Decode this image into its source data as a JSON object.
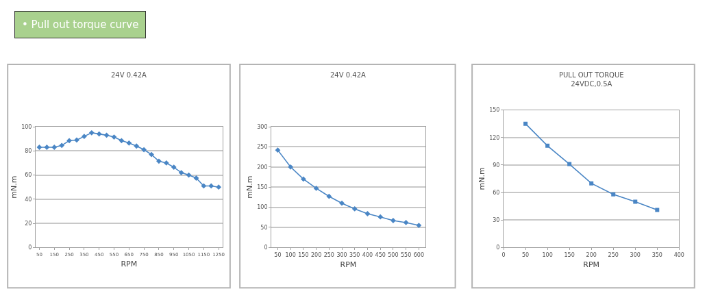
{
  "chart_data": [
    {
      "type": "line",
      "title": "24V 0.42A",
      "xlabel": "RPM",
      "ylabel": "mN.m",
      "annotations": [
        "• Pull out torque curve"
      ],
      "x": [
        50,
        100,
        150,
        200,
        250,
        300,
        350,
        400,
        450,
        500,
        550,
        600,
        650,
        700,
        750,
        800,
        850,
        900,
        950,
        1000,
        1050,
        1100,
        1150,
        1200,
        1250
      ],
      "series": [
        {
          "color": "#4a86c5",
          "values": [
            83,
            83,
            83,
            84.5,
            88.5,
            89,
            92,
            95,
            94,
            93,
            91.5,
            88.5,
            86.5,
            84,
            81,
            77,
            71.5,
            70,
            66.5,
            62,
            60,
            57.5,
            51,
            51,
            50
          ]
        }
      ],
      "xlim": [
        25,
        1275
      ],
      "xticks": [
        50,
        150,
        250,
        350,
        450,
        550,
        650,
        750,
        850,
        950,
        1050,
        1150,
        1250
      ],
      "ylim": [
        0,
        100
      ],
      "yticks": [
        0,
        20,
        40,
        60,
        80,
        100
      ],
      "grid": "y",
      "marker": "diamond",
      "line_style": "solid"
    },
    {
      "type": "line",
      "title": "24V 0.42A",
      "xlabel": "RPM",
      "ylabel": "mN.m",
      "x": [
        50,
        100,
        150,
        200,
        250,
        300,
        350,
        400,
        450,
        500,
        550,
        600
      ],
      "series": [
        {
          "color": "#4a86c5",
          "values": [
            242,
            200,
            170,
            147,
            127,
            110,
            96,
            84,
            76,
            67,
            62,
            55
          ]
        }
      ],
      "xlim": [
        25,
        625
      ],
      "xticks": [
        50,
        100,
        150,
        200,
        250,
        300,
        350,
        400,
        450,
        500,
        550,
        600
      ],
      "ylim": [
        0,
        300
      ],
      "yticks": [
        0,
        50,
        100,
        150,
        200,
        250,
        300
      ],
      "grid": "y",
      "marker": "diamond",
      "line_style": "solid"
    },
    {
      "type": "line",
      "title": "PULL OUT TORQUE",
      "subtitle": "24VDC,0.5A",
      "xlabel": "RPM",
      "ylabel": "mN.m",
      "x": [
        50,
        100,
        150,
        200,
        250,
        300,
        350
      ],
      "series": [
        {
          "color": "#4a86c5",
          "values": [
            135,
            111,
            91,
            70,
            58,
            50,
            41
          ]
        }
      ],
      "xlim": [
        0,
        400
      ],
      "xticks": [
        0,
        50,
        100,
        150,
        200,
        250,
        300,
        350,
        400
      ],
      "ylim": [
        0,
        150
      ],
      "yticks": [
        0,
        30,
        60,
        90,
        120,
        150
      ],
      "grid": "y",
      "marker": "square",
      "line_style": "solid"
    }
  ]
}
